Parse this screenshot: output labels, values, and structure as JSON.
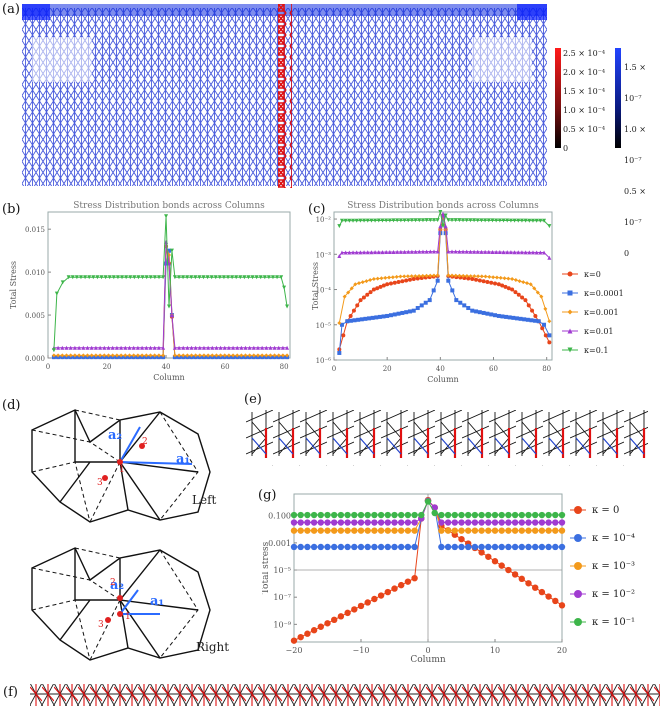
{
  "panels": {
    "a": "(a)",
    "b": "(b)",
    "c": "(c)",
    "d": "(d)",
    "e": "(e)",
    "f": "(f)",
    "g": "(g)"
  },
  "colorbars": {
    "red": {
      "ticks": [
        "2.5 × 10⁻⁴",
        "2.0 × 10⁻⁴",
        "1.5 × 10⁻⁴",
        "1.0 × 10⁻⁴",
        "0.5 × 10⁻⁴",
        "0"
      ]
    },
    "blue": {
      "ticks": [
        "1.5 × 10⁻⁷",
        "1.0 × 10⁻⁷",
        "0.5 × 10⁻⁷",
        "0"
      ]
    }
  },
  "lattice_labels": {
    "left": "Left",
    "right": "Right",
    "a1": "a₁",
    "a2": "a₂",
    "site1": "1",
    "site2": "2",
    "site3": "3"
  },
  "colors": {
    "k0": "#e8451a",
    "k1": "#3b6fe0",
    "k2": "#f39a1b",
    "k3": "#a03bd1",
    "k4": "#3db54a"
  },
  "chart_data": [
    {
      "id": "b",
      "type": "line",
      "title": "Stress Distribution bonds across Columns",
      "xlabel": "Column",
      "ylabel": "Total Stress",
      "xlim": [
        0,
        82
      ],
      "ylim": [
        0,
        0.017
      ],
      "xticks": [
        "0",
        "20",
        "40",
        "60",
        "80"
      ],
      "yticks": [
        "0.000",
        "0.005",
        "0.010",
        "0.015"
      ],
      "series": [
        {
          "name": "κ=0",
          "points": [
            [
              2,
              0.0001
            ],
            [
              39,
              0.0001
            ],
            [
              40,
              0.013
            ],
            [
              41,
              0.011
            ],
            [
              42,
              0.0048
            ],
            [
              43,
              0.0001
            ],
            [
              81,
              0.0001
            ]
          ]
        },
        {
          "name": "κ=0.0001",
          "points": [
            [
              2,
              0.0001
            ],
            [
              39,
              0.0001
            ],
            [
              40,
              0.011
            ],
            [
              41,
              0.0125
            ],
            [
              42,
              0.005
            ],
            [
              43,
              0.0001
            ],
            [
              81,
              0.0001
            ]
          ]
        },
        {
          "name": "κ=0.001",
          "points": [
            [
              2,
              0.0003
            ],
            [
              39,
              0.0003
            ],
            [
              40,
              0.013
            ],
            [
              41,
              0.012
            ],
            [
              42,
              0.005
            ],
            [
              43,
              0.0003
            ],
            [
              81,
              0.0003
            ]
          ]
        },
        {
          "name": "κ=0.01",
          "points": [
            [
              2,
              0.0012
            ],
            [
              39,
              0.0012
            ],
            [
              40,
              0.0135
            ],
            [
              41,
              0.011
            ],
            [
              42,
              0.005
            ],
            [
              43,
              0.0012
            ],
            [
              81,
              0.0012
            ]
          ]
        },
        {
          "name": "κ=0.1",
          "points": [
            [
              2,
              0.0009
            ],
            [
              3,
              0.0075
            ],
            [
              5,
              0.0088
            ],
            [
              7,
              0.0094
            ],
            [
              39,
              0.0094
            ],
            [
              40,
              0.0165
            ],
            [
              41,
              0.006
            ],
            [
              42,
              0.0125
            ],
            [
              43,
              0.0094
            ],
            [
              79,
              0.0094
            ],
            [
              80,
              0.0082
            ],
            [
              81,
              0.006
            ]
          ]
        }
      ]
    },
    {
      "id": "c",
      "type": "line",
      "title": "Stress Distribution bonds across Columns",
      "xlabel": "Column",
      "ylabel": "Total Stress",
      "xlim": [
        0,
        82
      ],
      "ylim": [
        -6,
        -1.8
      ],
      "yscale": "log",
      "xticks": [
        "0",
        "20",
        "40",
        "60",
        "80"
      ],
      "yticks": [
        "10⁻⁶",
        "10⁻⁵",
        "10⁻⁴",
        "10⁻³",
        "10⁻²"
      ],
      "legend": [
        "κ=0",
        "κ=0.0001",
        "κ=0.001",
        "κ=0.01",
        "κ=0.1"
      ],
      "series": [
        {
          "name": "κ=0",
          "points": [
            [
              2,
              -5.7
            ],
            [
              5,
              -4.9
            ],
            [
              10,
              -4.3
            ],
            [
              15,
              -4.0
            ],
            [
              20,
              -3.85
            ],
            [
              30,
              -3.7
            ],
            [
              39,
              -3.62
            ],
            [
              40,
              -2.3
            ],
            [
              41,
              -1.9
            ],
            [
              42,
              -2.3
            ],
            [
              43,
              -3.62
            ],
            [
              52,
              -3.7
            ],
            [
              62,
              -3.85
            ],
            [
              67,
              -4.0
            ],
            [
              72,
              -4.3
            ],
            [
              77,
              -4.9
            ],
            [
              81,
              -5.5
            ]
          ]
        },
        {
          "name": "κ=0.0001",
          "points": [
            [
              2,
              -5.8
            ],
            [
              3,
              -5.0
            ],
            [
              5,
              -4.9
            ],
            [
              20,
              -4.75
            ],
            [
              30,
              -4.6
            ],
            [
              36,
              -4.3
            ],
            [
              39,
              -3.75
            ],
            [
              40,
              -2.4
            ],
            [
              41,
              -1.95
            ],
            [
              42,
              -2.4
            ],
            [
              43,
              -3.75
            ],
            [
              46,
              -4.3
            ],
            [
              52,
              -4.6
            ],
            [
              62,
              -4.75
            ],
            [
              77,
              -4.9
            ],
            [
              79,
              -5.0
            ],
            [
              81,
              -5.3
            ]
          ]
        },
        {
          "name": "κ=0.001",
          "points": [
            [
              2,
              -4.95
            ],
            [
              4,
              -4.2
            ],
            [
              8,
              -3.85
            ],
            [
              15,
              -3.7
            ],
            [
              25,
              -3.63
            ],
            [
              39,
              -3.6
            ],
            [
              40,
              -2.3
            ],
            [
              41,
              -1.9
            ],
            [
              42,
              -2.3
            ],
            [
              43,
              -3.6
            ],
            [
              57,
              -3.63
            ],
            [
              67,
              -3.7
            ],
            [
              74,
              -3.85
            ],
            [
              78,
              -4.2
            ],
            [
              81,
              -4.9
            ]
          ]
        },
        {
          "name": "κ=0.01",
          "points": [
            [
              2,
              -3.05
            ],
            [
              3,
              -2.95
            ],
            [
              39,
              -2.92
            ],
            [
              40,
              -2.2
            ],
            [
              41,
              -1.85
            ],
            [
              42,
              -2.2
            ],
            [
              43,
              -2.92
            ],
            [
              79,
              -2.95
            ],
            [
              81,
              -3.1
            ]
          ]
        },
        {
          "name": "κ=0.1",
          "points": [
            [
              2,
              -2.2
            ],
            [
              3,
              -2.05
            ],
            [
              39,
              -2.03
            ],
            [
              40,
              -1.8
            ],
            [
              41,
              -2.2
            ],
            [
              42,
              -1.9
            ],
            [
              43,
              -2.03
            ],
            [
              79,
              -2.05
            ],
            [
              81,
              -2.2
            ]
          ]
        }
      ]
    },
    {
      "id": "g",
      "type": "line",
      "title": "",
      "xlabel": "Column",
      "ylabel": "Total stress",
      "xlim": [
        -20,
        20
      ],
      "ylim": [
        -10.3,
        0.6
      ],
      "yscale": "log",
      "xticks": [
        "−20",
        "−10",
        "0",
        "10",
        "20"
      ],
      "yticks": [
        "0.100",
        "0.001",
        "10⁻⁵",
        "10⁻⁷",
        "10⁻⁹"
      ],
      "legend": [
        "κ = 0",
        "κ = 10⁻⁴",
        "κ = 10⁻³",
        "κ = 10⁻²",
        "κ = 10⁻¹"
      ],
      "series": [
        {
          "name": "κ = 0",
          "points": [
            [
              -20,
              -10.2
            ],
            [
              -2,
              -5.6
            ],
            [
              -1,
              -1.2
            ],
            [
              0,
              0.15
            ],
            [
              1,
              -0.4
            ],
            [
              2,
              -1.75
            ],
            [
              20,
              -7.6
            ]
          ]
        },
        {
          "name": "κ = 10⁻⁴",
          "points": [
            [
              -20,
              -3.3
            ],
            [
              -2,
              -3.3
            ],
            [
              -1,
              -1.2
            ],
            [
              0,
              0.1
            ],
            [
              1,
              -0.4
            ],
            [
              2,
              -3.3
            ],
            [
              20,
              -3.3
            ]
          ]
        },
        {
          "name": "κ = 10⁻³",
          "points": [
            [
              -20,
              -2.1
            ],
            [
              -2,
              -2.1
            ],
            [
              -1,
              -1.2
            ],
            [
              0,
              0.1
            ],
            [
              1,
              -0.4
            ],
            [
              2,
              -2.1
            ],
            [
              20,
              -2.1
            ]
          ]
        },
        {
          "name": "κ = 10⁻²",
          "points": [
            [
              -20,
              -1.5
            ],
            [
              -2,
              -1.5
            ],
            [
              -1,
              -1.2
            ],
            [
              0,
              0.1
            ],
            [
              1,
              -0.4
            ],
            [
              2,
              -1.5
            ],
            [
              20,
              -1.5
            ]
          ]
        },
        {
          "name": "κ = 10⁻¹",
          "points": [
            [
              -20,
              -0.95
            ],
            [
              -2,
              -0.95
            ],
            [
              -1,
              -0.95
            ],
            [
              0,
              0.05
            ],
            [
              1,
              -0.8
            ],
            [
              2,
              -0.95
            ],
            [
              20,
              -0.95
            ]
          ]
        }
      ]
    }
  ]
}
